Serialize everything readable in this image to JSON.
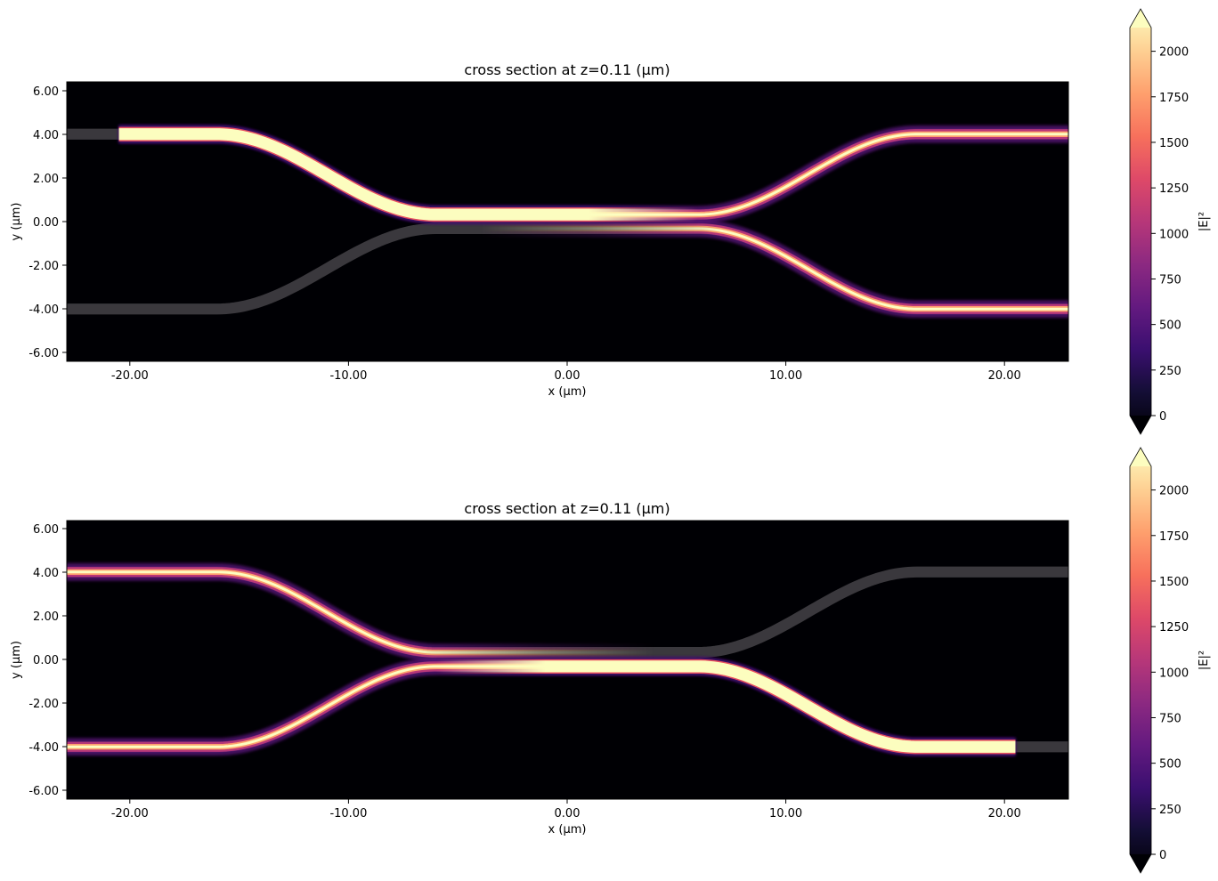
{
  "chart_data": [
    {
      "type": "heatmap",
      "title": "cross section at z=0.11 (µm)",
      "xlabel": "x (µm)",
      "ylabel": "y (µm)",
      "xlim": [
        -22.9,
        22.9
      ],
      "ylim": [
        -6.4,
        6.4
      ],
      "xticks": [
        -20,
        -10,
        0,
        10,
        20
      ],
      "xtick_labels": [
        "-20.00",
        "-10.00",
        "0.00",
        "10.00",
        "20.00"
      ],
      "yticks": [
        -6,
        -4,
        -2,
        0,
        2,
        4,
        6
      ],
      "ytick_labels": [
        "-6.00",
        "-4.00",
        "-2.00",
        "0.00",
        "2.00",
        "4.00",
        "6.00"
      ],
      "colormap": "magma",
      "colorbar": {
        "label": "|E|²",
        "clim": [
          0,
          2130
        ],
        "extend": "both",
        "ticks": [
          0,
          250,
          500,
          750,
          1000,
          1250,
          1500,
          1750,
          2000
        ],
        "tick_labels": [
          "0",
          "250",
          "500",
          "750",
          "1000",
          "1250",
          "1500",
          "1750",
          "2000"
        ]
      },
      "structure": {
        "arm_y": 4.0,
        "coupler_y": 0.32,
        "waveguide_width": 0.5,
        "bend_x": [
          [
            -16,
            -6
          ],
          [
            6,
            16
          ]
        ],
        "color": "#3a383d"
      },
      "source": {
        "x": -20.5,
        "y": 4.0,
        "direction": "+x"
      },
      "grid": false
    },
    {
      "type": "heatmap",
      "title": "cross section at z=0.11 (µm)",
      "xlabel": "x (µm)",
      "ylabel": "y (µm)",
      "xlim": [
        -22.9,
        22.9
      ],
      "ylim": [
        -6.4,
        6.4
      ],
      "xticks": [
        -20,
        -10,
        0,
        10,
        20
      ],
      "xtick_labels": [
        "-20.00",
        "-10.00",
        "0.00",
        "10.00",
        "20.00"
      ],
      "yticks": [
        -6,
        -4,
        -2,
        0,
        2,
        4,
        6
      ],
      "ytick_labels": [
        "-6.00",
        "-4.00",
        "-2.00",
        "0.00",
        "2.00",
        "4.00",
        "6.00"
      ],
      "colormap": "magma",
      "colorbar": {
        "label": "|E|²",
        "clim": [
          0,
          2130
        ],
        "extend": "both",
        "ticks": [
          0,
          250,
          500,
          750,
          1000,
          1250,
          1500,
          1750,
          2000
        ],
        "tick_labels": [
          "0",
          "250",
          "500",
          "750",
          "1000",
          "1250",
          "1500",
          "1750",
          "2000"
        ]
      },
      "structure": {
        "arm_y": 4.0,
        "coupler_y": 0.32,
        "waveguide_width": 0.5,
        "bend_x": [
          [
            -16,
            -6
          ],
          [
            6,
            16
          ]
        ],
        "color": "#3a383d"
      },
      "source": {
        "x": 20.5,
        "y": -4.0,
        "direction": "-x"
      },
      "grid": false
    }
  ],
  "colors": {
    "background": "#000004",
    "waveguide": "#3a383d",
    "magma": [
      "#000004",
      "#140e36",
      "#3b0f70",
      "#641a80",
      "#8c2981",
      "#b73779",
      "#de4968",
      "#f7705c",
      "#fe9f6d",
      "#fecf92",
      "#fcfdbf"
    ]
  }
}
